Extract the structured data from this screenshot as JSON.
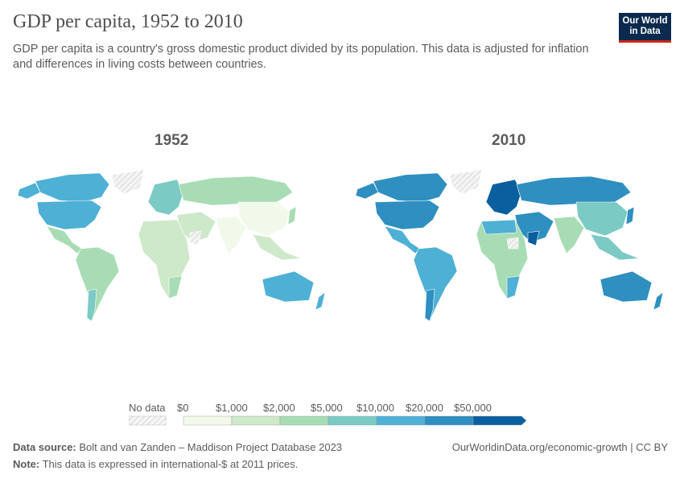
{
  "header": {
    "title": "GDP per capita, 1952 to 2010",
    "subtitle": "GDP per capita is a country's gross domestic product divided by its population. This data is adjusted for inflation and differences in living costs between countries.",
    "logo_line1": "Our World",
    "logo_line2": "in Data"
  },
  "maps": [
    {
      "year": "1952"
    },
    {
      "year": "2010"
    }
  ],
  "legend": {
    "no_data": "No data",
    "labels": [
      "$0",
      "$1,000",
      "$2,000",
      "$5,000",
      "$10,000",
      "$20,000",
      "$50,000"
    ],
    "colors": [
      "#f1f9ea",
      "#cde9c9",
      "#a8dcb5",
      "#7bcbc4",
      "#4eb0d5",
      "#2e8fc0",
      "#0a5f9f"
    ]
  },
  "footer": {
    "source_label": "Data source:",
    "source_text": " Bolt and van Zanden – Maddison Project Database 2023",
    "url": "OurWorldinData.org/economic-growth | CC BY",
    "note_label": "Note:",
    "note_text": " This data is expressed in international-$ at 2011 prices."
  }
}
